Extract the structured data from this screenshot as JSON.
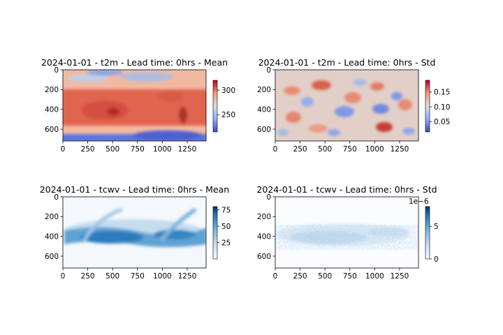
{
  "figure": {
    "background": "#ffffff"
  },
  "chart_data": [
    {
      "type": "heatmap",
      "title": "2024-01-01 - t2m - Lead time: 0hrs - Mean",
      "colormap": "coolwarm",
      "xlim": [
        0,
        1440
      ],
      "ylim": [
        720,
        0
      ],
      "xticks": [
        0,
        250,
        500,
        750,
        1000,
        1250
      ],
      "yticks": [
        0,
        200,
        400,
        600
      ],
      "colorbar": {
        "ticks": [
          250,
          300
        ],
        "range": [
          215,
          320
        ],
        "exponent": ""
      }
    },
    {
      "type": "heatmap",
      "title": "2024-01-01 - t2m - Lead time: 0hrs - Std",
      "colormap": "coolwarm",
      "xlim": [
        0,
        1440
      ],
      "ylim": [
        720,
        0
      ],
      "xticks": [
        0,
        250,
        500,
        750,
        1000,
        1250
      ],
      "yticks": [
        0,
        200,
        400,
        600
      ],
      "colorbar": {
        "ticks": [
          0.05,
          0.1,
          0.15
        ],
        "range": [
          0.015,
          0.19
        ],
        "exponent": ""
      }
    },
    {
      "type": "heatmap",
      "title": "2024-01-01 - tcwv - Lead time: 0hrs - Mean",
      "colormap": "Blues",
      "xlim": [
        0,
        1440
      ],
      "ylim": [
        720,
        0
      ],
      "xticks": [
        0,
        250,
        500,
        750,
        1000,
        1250
      ],
      "yticks": [
        0,
        200,
        400,
        600
      ],
      "colorbar": {
        "ticks": [
          25,
          50,
          75
        ],
        "range": [
          0,
          80
        ],
        "exponent": ""
      }
    },
    {
      "type": "heatmap",
      "title": "2024-01-01 - tcwv - Lead time: 0hrs - Std",
      "colormap": "Blues",
      "xlim": [
        0,
        1440
      ],
      "ylim": [
        720,
        0
      ],
      "xticks": [
        0,
        250,
        500,
        750,
        1000,
        1250
      ],
      "yticks": [
        0,
        200,
        400,
        600
      ],
      "colorbar": {
        "ticks": [
          0,
          5
        ],
        "range": [
          0,
          8
        ],
        "exponent": "1e−6"
      }
    }
  ]
}
